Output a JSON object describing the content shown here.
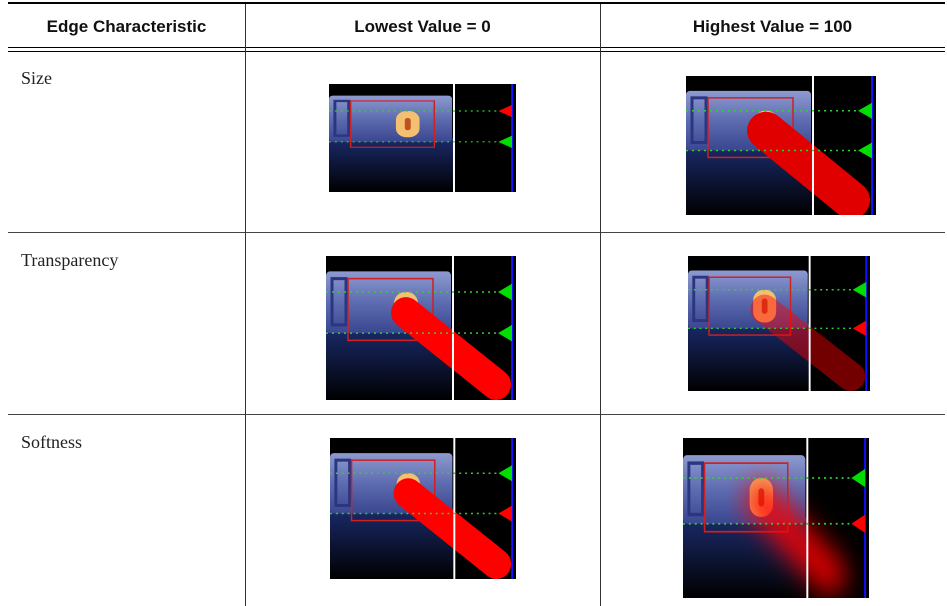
{
  "table": {
    "header": [
      "Edge Characteristic",
      "Lowest Value = 0",
      "Highest Value = 100"
    ],
    "rows": [
      [
        "Size"
      ],
      [
        "Transparency"
      ],
      [
        "Softness"
      ]
    ]
  }
}
